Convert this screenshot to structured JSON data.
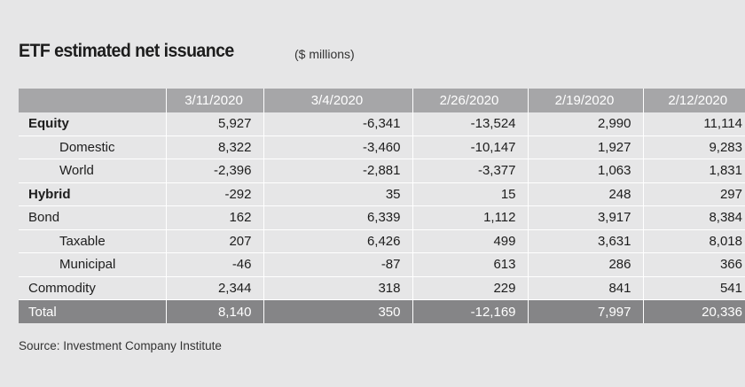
{
  "title": "ETF estimated net issuance",
  "units": "($ millions)",
  "source": "Source: Investment Company Institute",
  "chart_data": {
    "type": "table",
    "columns": [
      "",
      "3/11/2020",
      "3/4/2020",
      "2/26/2020",
      "2/19/2020",
      "2/12/2020"
    ],
    "rows": [
      {
        "label": "Equity",
        "style": "bold",
        "values": [
          "5,927",
          "-6,341",
          "-13,524",
          "2,990",
          "11,114"
        ]
      },
      {
        "label": "Domestic",
        "style": "indent",
        "values": [
          "8,322",
          "-3,460",
          "-10,147",
          "1,927",
          "9,283"
        ]
      },
      {
        "label": "World",
        "style": "indent",
        "values": [
          "-2,396",
          "-2,881",
          "-3,377",
          "1,063",
          "1,831"
        ]
      },
      {
        "label": "Hybrid",
        "style": "bold",
        "values": [
          "-292",
          "35",
          "15",
          "248",
          "297"
        ]
      },
      {
        "label": "Bond",
        "style": "plain",
        "values": [
          "162",
          "6,339",
          "1,112",
          "3,917",
          "8,384"
        ]
      },
      {
        "label": "Taxable",
        "style": "indent",
        "values": [
          "207",
          "6,426",
          "499",
          "3,631",
          "8,018"
        ]
      },
      {
        "label": "Municipal",
        "style": "indent",
        "values": [
          "-46",
          "-87",
          "613",
          "286",
          "366"
        ]
      },
      {
        "label": "Commodity",
        "style": "plain",
        "values": [
          "2,344",
          "318",
          "229",
          "841",
          "541"
        ]
      },
      {
        "label": "Total",
        "style": "total",
        "values": [
          "8,140",
          "350",
          "-12,169",
          "7,997",
          "20,336"
        ]
      }
    ]
  },
  "colors": {
    "background": "#e6e6e7",
    "header": "#a6a6a8",
    "total_row": "#858587",
    "text": "#1d1d1d"
  }
}
